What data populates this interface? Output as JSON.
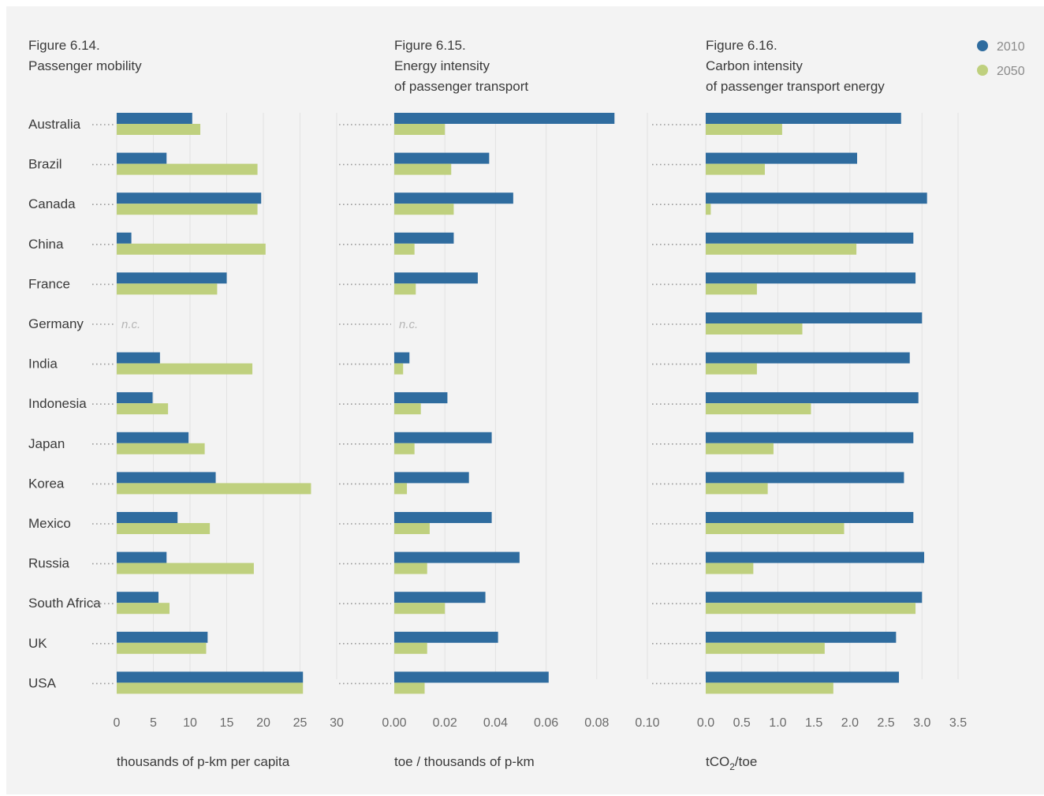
{
  "colors": {
    "series_2010": "#2f6c9f",
    "series_2050": "#bfd07e",
    "grid": "#e2e2e2",
    "text": "#3a3a3a",
    "tick": "#6a6a6a",
    "nc": "#b5b5b5",
    "dots": "#9a9a9a"
  },
  "legend": [
    {
      "label": "2010",
      "color": "#2f6c9f"
    },
    {
      "label": "2050",
      "color": "#bfd07e"
    }
  ],
  "nc_label": "n.c.",
  "chart_data": [
    {
      "type": "bar",
      "orientation": "horizontal",
      "title_lines": [
        "Figure 6.14.",
        "Passenger mobility"
      ],
      "xlabel": "thousands of p-km per capita",
      "xlim": [
        0,
        30
      ],
      "xticks": [
        "0",
        "5",
        "10",
        "15",
        "20",
        "25",
        "30"
      ],
      "categories": [
        "Australia",
        "Brazil",
        "Canada",
        "China",
        "France",
        "Germany",
        "India",
        "Indonesia",
        "Japan",
        "Korea",
        "Mexico",
        "Russia",
        "South Africa",
        "UK",
        "USA"
      ],
      "series": [
        {
          "name": "2010",
          "values": [
            10.3,
            6.8,
            19.7,
            2.0,
            15.0,
            null,
            5.9,
            4.9,
            9.8,
            13.5,
            8.3,
            6.8,
            5.7,
            12.4,
            25.4
          ]
        },
        {
          "name": "2050",
          "values": [
            11.4,
            19.2,
            19.2,
            20.3,
            13.7,
            null,
            18.5,
            7.0,
            12.0,
            26.5,
            12.7,
            18.7,
            7.2,
            12.2,
            25.4
          ]
        }
      ]
    },
    {
      "type": "bar",
      "orientation": "horizontal",
      "title_lines": [
        "Figure 6.15.",
        "Energy intensity",
        "of passenger transport"
      ],
      "xlabel": "toe / thousands of p-km",
      "xlim": [
        0,
        0.1
      ],
      "xticks": [
        "0.00",
        "0.02",
        "0.04",
        "0.06",
        "0.08",
        "0.10"
      ],
      "categories": [
        "Australia",
        "Brazil",
        "Canada",
        "China",
        "France",
        "Germany",
        "India",
        "Indonesia",
        "Japan",
        "Korea",
        "Mexico",
        "Russia",
        "South Africa",
        "UK",
        "USA"
      ],
      "series": [
        {
          "name": "2010",
          "values": [
            0.087,
            0.0375,
            0.047,
            0.0235,
            0.033,
            null,
            0.006,
            0.021,
            0.0385,
            0.0295,
            0.0385,
            0.0495,
            0.036,
            0.041,
            0.061
          ]
        },
        {
          "name": "2050",
          "values": [
            0.02,
            0.0225,
            0.0235,
            0.008,
            0.0085,
            null,
            0.0035,
            0.0105,
            0.008,
            0.005,
            0.014,
            0.013,
            0.02,
            0.013,
            0.012
          ]
        }
      ]
    },
    {
      "type": "bar",
      "orientation": "horizontal",
      "title_lines": [
        "Figure 6.16.",
        "Carbon intensity",
        "of passenger transport energy"
      ],
      "xlabel_parts": [
        "tCO",
        "2",
        "/toe"
      ],
      "xlim": [
        0,
        3.5
      ],
      "xticks": [
        "0.0",
        "0.5",
        "1.0",
        "1.5",
        "2.0",
        "2.5",
        "3.0",
        "3.5"
      ],
      "categories": [
        "Australia",
        "Brazil",
        "Canada",
        "China",
        "France",
        "Germany",
        "India",
        "Indonesia",
        "Japan",
        "Korea",
        "Mexico",
        "Russia",
        "South Africa",
        "UK",
        "USA"
      ],
      "series": [
        {
          "name": "2010",
          "values": [
            2.71,
            2.1,
            3.07,
            2.88,
            2.91,
            3.0,
            2.83,
            2.95,
            2.88,
            2.75,
            2.88,
            3.03,
            3.0,
            2.64,
            2.68
          ]
        },
        {
          "name": "2050",
          "values": [
            1.06,
            0.82,
            0.07,
            2.09,
            0.71,
            1.34,
            0.71,
            1.46,
            0.94,
            0.86,
            1.92,
            0.66,
            2.91,
            1.65,
            1.77
          ]
        }
      ]
    }
  ]
}
